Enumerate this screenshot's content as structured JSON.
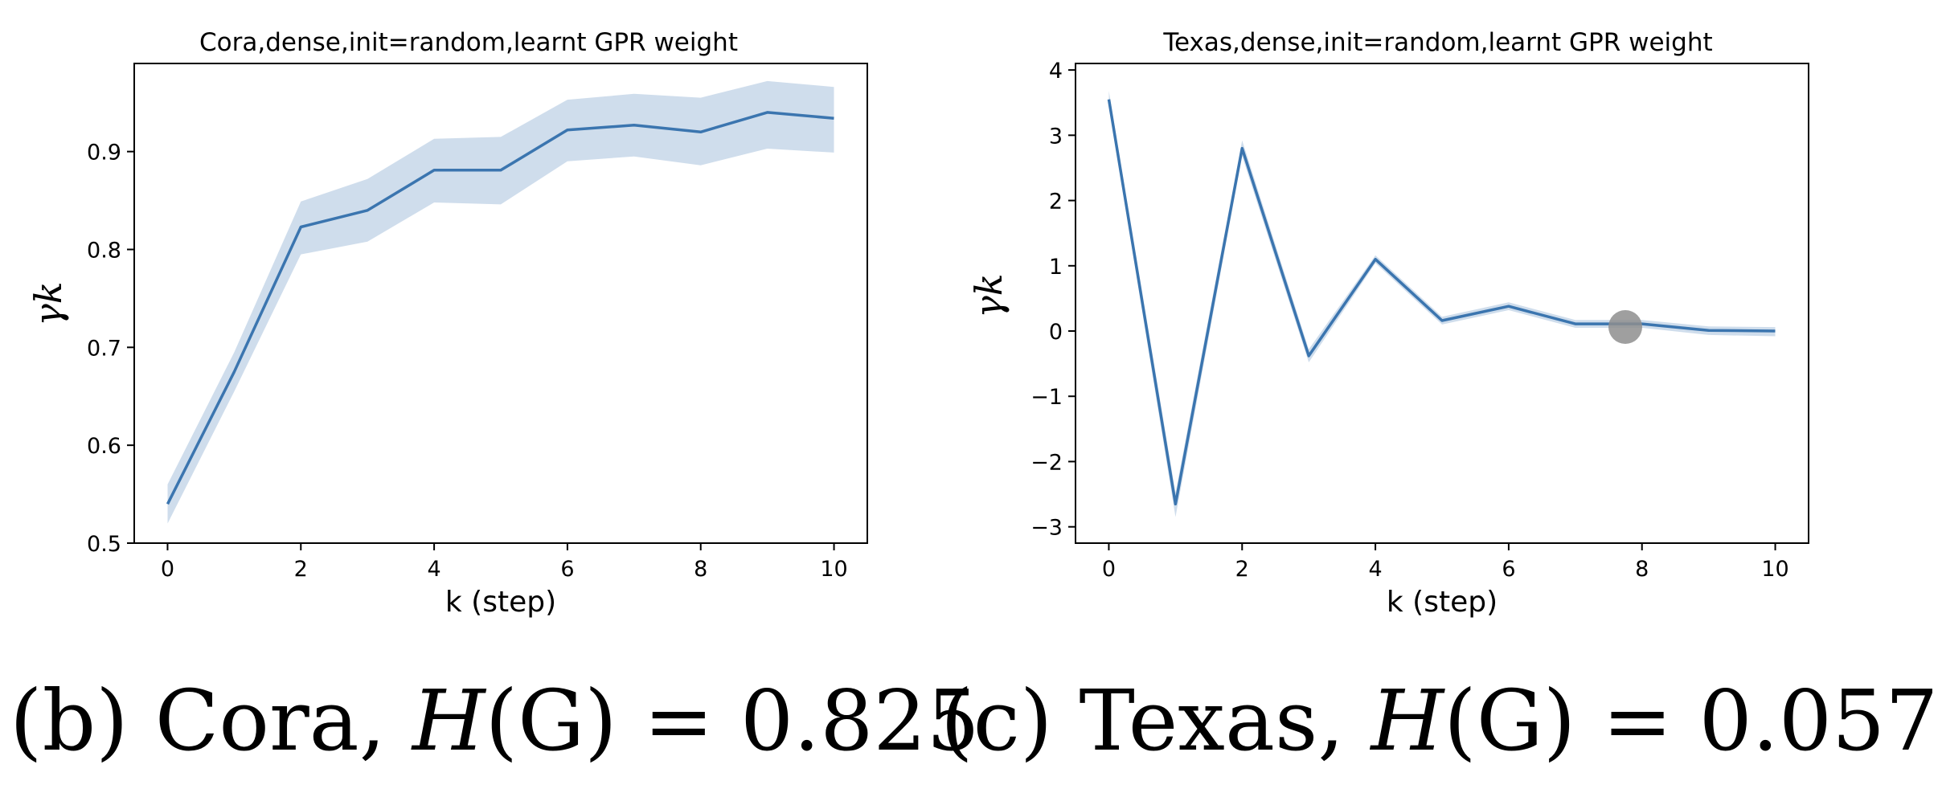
{
  "chart_data": [
    {
      "type": "line",
      "title": "Cora,dense,init=random,learnt GPR weight",
      "xlabel": "k (step)",
      "ylabel": "γk",
      "xlim": [
        -0.5,
        10.5
      ],
      "ylim": [
        0.5,
        0.99
      ],
      "xticks": [
        0,
        2,
        4,
        6,
        8,
        10
      ],
      "yticks": [
        0.5,
        0.6,
        0.7,
        0.8,
        0.9
      ],
      "x": [
        0,
        1,
        2,
        3,
        4,
        5,
        6,
        7,
        8,
        9,
        10
      ],
      "series": [
        {
          "name": "gamma_k",
          "values": [
            0.54,
            0.675,
            0.823,
            0.84,
            0.881,
            0.881,
            0.922,
            0.927,
            0.92,
            0.94,
            0.934
          ],
          "lower": [
            0.52,
            0.655,
            0.795,
            0.808,
            0.848,
            0.846,
            0.89,
            0.895,
            0.886,
            0.903,
            0.899
          ],
          "upper": [
            0.56,
            0.695,
            0.849,
            0.872,
            0.913,
            0.915,
            0.953,
            0.959,
            0.955,
            0.972,
            0.966
          ]
        }
      ]
    },
    {
      "type": "line",
      "title": "Texas,dense,init=random,learnt GPR weight",
      "xlabel": "k (step)",
      "ylabel": "γk",
      "xlim": [
        -0.5,
        10.5
      ],
      "ylim": [
        -3.25,
        4.1
      ],
      "xticks": [
        0,
        2,
        4,
        6,
        8,
        10
      ],
      "yticks": [
        -3,
        -2,
        -1,
        0,
        1,
        2,
        3,
        4
      ],
      "x": [
        0,
        1,
        2,
        3,
        4,
        5,
        6,
        7,
        8,
        9,
        10
      ],
      "series": [
        {
          "name": "gamma_k",
          "values": [
            3.55,
            -2.65,
            2.8,
            -0.38,
            1.1,
            0.16,
            0.38,
            0.11,
            0.11,
            0.01,
            0.0
          ],
          "lower": [
            3.45,
            -2.85,
            2.68,
            -0.48,
            1.04,
            0.1,
            0.32,
            0.05,
            0.05,
            -0.06,
            -0.08
          ],
          "upper": [
            3.68,
            -2.48,
            2.92,
            -0.28,
            1.16,
            0.22,
            0.44,
            0.17,
            0.17,
            0.07,
            0.06
          ]
        }
      ]
    }
  ],
  "captions": [
    {
      "label": "(b) Cora,",
      "math": "(G) = 0.825",
      "symbol": "H"
    },
    {
      "label": "(c) Texas,",
      "math": "(G) = 0.057",
      "symbol": "H"
    }
  ],
  "colors": {
    "line": "#3b75af",
    "band": "#c7d7e9",
    "marker": "#8e8e8e"
  }
}
